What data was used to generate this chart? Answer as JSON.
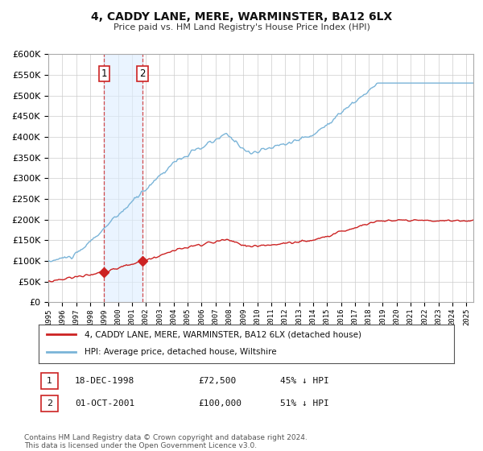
{
  "title": "4, CADDY LANE, MERE, WARMINSTER, BA12 6LX",
  "subtitle": "Price paid vs. HM Land Registry's House Price Index (HPI)",
  "hpi_color": "#7ab4d8",
  "price_color": "#cc2222",
  "background_color": "#ffffff",
  "grid_color": "#cccccc",
  "shade_color": "#ddeeff",
  "transaction1_date": 1999.0,
  "transaction1_price": 72500,
  "transaction2_date": 2001.75,
  "transaction2_price": 100000,
  "legend1": "4, CADDY LANE, MERE, WARMINSTER, BA12 6LX (detached house)",
  "legend2": "HPI: Average price, detached house, Wiltshire",
  "table_row1_num": "1",
  "table_row1_date": "18-DEC-1998",
  "table_row1_price": "£72,500",
  "table_row1_hpi": "45% ↓ HPI",
  "table_row2_num": "2",
  "table_row2_date": "01-OCT-2001",
  "table_row2_price": "£100,000",
  "table_row2_hpi": "51% ↓ HPI",
  "footer": "Contains HM Land Registry data © Crown copyright and database right 2024.\nThis data is licensed under the Open Government Licence v3.0.",
  "ylim": [
    0,
    600000
  ],
  "xlim_start": 1995.0,
  "xlim_end": 2025.5
}
